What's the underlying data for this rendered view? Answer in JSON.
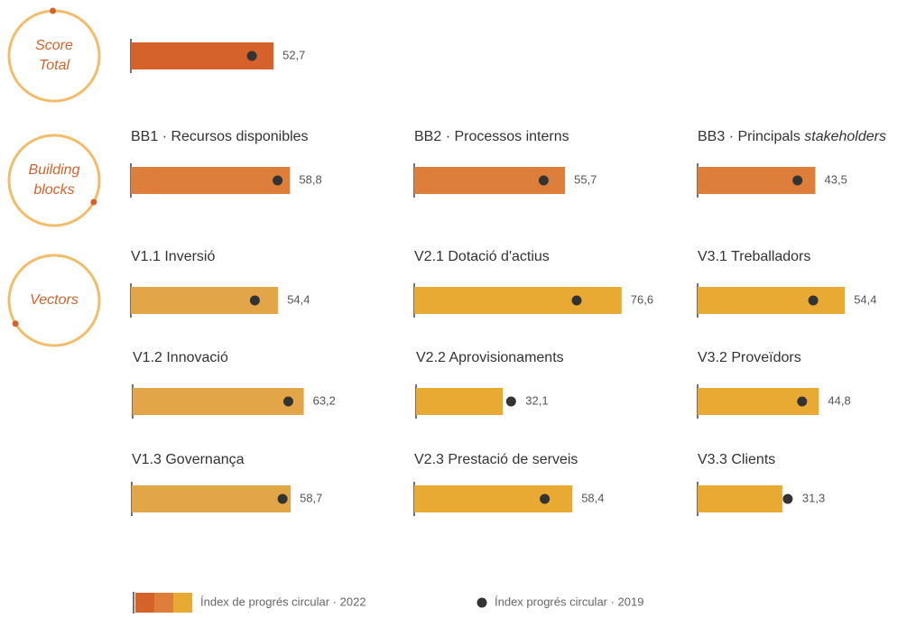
{
  "groups": [
    {
      "label": [
        "Score",
        "Total"
      ]
    },
    {
      "label": [
        "Building",
        "blocks"
      ]
    },
    {
      "label": [
        "Vectors"
      ]
    }
  ],
  "chart_data": [
    {
      "type": "bar",
      "group": 0,
      "title": null,
      "values": [
        52.7
      ],
      "value_labels": [
        "52,7"
      ],
      "values_2019": [
        44.7
      ],
      "color": "#d4622a",
      "xlim": [
        0,
        100
      ]
    },
    {
      "type": "bar",
      "group": 1,
      "title": "BB1 · Recursos disponibles",
      "values": [
        58.8
      ],
      "value_labels": [
        "58,8"
      ],
      "values_2019": [
        54.2
      ],
      "color": "#dd7f3a",
      "xlim": [
        0,
        100
      ]
    },
    {
      "type": "bar",
      "group": 1,
      "title": "BB2 · Processos interns",
      "values": [
        55.7
      ],
      "value_labels": [
        "55,7"
      ],
      "values_2019": [
        47.8
      ],
      "color": "#dd7f3a",
      "xlim": [
        0,
        100
      ]
    },
    {
      "type": "bar",
      "group": 1,
      "title": "BB3 · Principals ",
      "title_italic": "stakeholders",
      "values": [
        43.5
      ],
      "value_labels": [
        "43,5"
      ],
      "values_2019": [
        36.9
      ],
      "color": "#dd7f3a",
      "xlim": [
        0,
        100
      ]
    },
    {
      "type": "bar",
      "group": 2,
      "title": "V1.1 Inversió",
      "values": [
        54.4
      ],
      "value_labels": [
        "54,4"
      ],
      "values_2019": [
        45.8
      ],
      "color": "#e2a648",
      "xlim": [
        0,
        100
      ]
    },
    {
      "type": "bar",
      "group": 2,
      "title": "V2.1 Dotació d'actius",
      "values": [
        76.6
      ],
      "value_labels": [
        "76,6"
      ],
      "values_2019": [
        60.0
      ],
      "color": "#e8aa33",
      "xlim": [
        0,
        100
      ]
    },
    {
      "type": "bar",
      "group": 2,
      "title": "V3.1 Treballadors",
      "values": [
        54.4
      ],
      "value_labels": [
        "54,4"
      ],
      "values_2019": [
        42.7
      ],
      "color": "#e8aa33",
      "xlim": [
        0,
        100
      ]
    },
    {
      "type": "bar",
      "group": 2,
      "title": "V1.2 Innovació",
      "values": [
        63.2
      ],
      "value_labels": [
        "63,2"
      ],
      "values_2019": [
        57.5
      ],
      "color": "#e2a648",
      "xlim": [
        0,
        100
      ]
    },
    {
      "type": "bar",
      "group": 2,
      "title": "V2.2 Aprovisionaments",
      "values": [
        32.1
      ],
      "value_labels": [
        "32,1"
      ],
      "values_2019": [
        35.1
      ],
      "color": "#e8aa33",
      "xlim": [
        0,
        100
      ]
    },
    {
      "type": "bar",
      "group": 2,
      "title": "V3.2 Proveïdors",
      "values": [
        44.8
      ],
      "value_labels": [
        "44,8"
      ],
      "values_2019": [
        38.6
      ],
      "color": "#e8aa33",
      "xlim": [
        0,
        100
      ]
    },
    {
      "type": "bar",
      "group": 2,
      "title": "V1.3 Governança",
      "values": [
        58.7
      ],
      "value_labels": [
        "58,7"
      ],
      "values_2019": [
        55.7
      ],
      "color": "#e2a648",
      "xlim": [
        0,
        100
      ]
    },
    {
      "type": "bar",
      "group": 2,
      "title": "V2.3 Prestació de serveis",
      "values": [
        58.4
      ],
      "value_labels": [
        "58,4"
      ],
      "values_2019": [
        48.2
      ],
      "color": "#e8aa33",
      "xlim": [
        0,
        100
      ]
    },
    {
      "type": "bar",
      "group": 2,
      "title": "V3.3 Clients",
      "values": [
        31.3
      ],
      "value_labels": [
        "31,3"
      ],
      "values_2019": [
        33.3
      ],
      "color": "#e8aa33",
      "xlim": [
        0,
        100
      ]
    }
  ],
  "legend": [
    {
      "name": "Índex de progrés circular · 2022",
      "colors": [
        "#d4622a",
        "#dd7f3a",
        "#e8aa33"
      ]
    },
    {
      "name": "Índex progrés circular · 2019",
      "color": "#333333"
    }
  ]
}
